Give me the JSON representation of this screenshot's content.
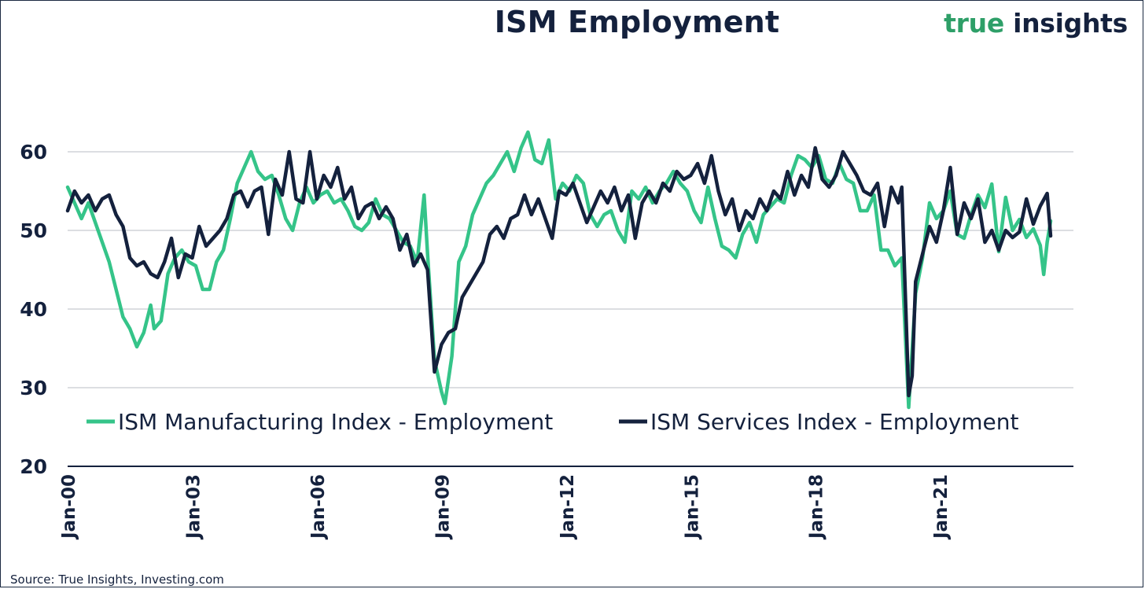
{
  "title": "ISM Employment",
  "brand": {
    "part1": "true",
    "part2": " insights"
  },
  "source": "Source: True Insights, Investing.com",
  "colors": {
    "manufacturing": "#35c489",
    "services": "#14213d",
    "grid": "#b8bcc6",
    "text": "#14213d"
  },
  "chart_data": {
    "type": "line",
    "title": "ISM Employment",
    "xlabel": "",
    "ylabel": "",
    "ylim": [
      20,
      62.5
    ],
    "yticks": [
      20,
      30,
      40,
      50,
      60
    ],
    "xlim": [
      "2000-01",
      "2023-09"
    ],
    "xticks": [
      "Jan-00",
      "Jan-03",
      "Jan-06",
      "Jan-09",
      "Jan-12",
      "Jan-15",
      "Jan-18",
      "Jan-21"
    ],
    "grid": true,
    "legend": "bottom",
    "series": [
      {
        "name": "ISM Manufacturing Index - Employment",
        "color": "#35c489",
        "points": [
          [
            "2000-01",
            55.5
          ],
          [
            "2000-03",
            53.5
          ],
          [
            "2000-05",
            51.5
          ],
          [
            "2000-07",
            53.5
          ],
          [
            "2000-09",
            51.0
          ],
          [
            "2000-11",
            48.5
          ],
          [
            "2001-01",
            46.0
          ],
          [
            "2001-03",
            42.5
          ],
          [
            "2001-05",
            39.0
          ],
          [
            "2001-07",
            37.5
          ],
          [
            "2001-09",
            35.2
          ],
          [
            "2001-11",
            37.0
          ],
          [
            "2002-01",
            40.5
          ],
          [
            "2002-02",
            37.5
          ],
          [
            "2002-04",
            38.5
          ],
          [
            "2002-06",
            44.5
          ],
          [
            "2002-08",
            46.5
          ],
          [
            "2002-10",
            47.5
          ],
          [
            "2002-12",
            46.0
          ],
          [
            "2003-02",
            45.5
          ],
          [
            "2003-04",
            42.5
          ],
          [
            "2003-06",
            42.5
          ],
          [
            "2003-08",
            46.0
          ],
          [
            "2003-10",
            47.5
          ],
          [
            "2003-12",
            51.5
          ],
          [
            "2004-02",
            56.0
          ],
          [
            "2004-04",
            58.0
          ],
          [
            "2004-06",
            60.0
          ],
          [
            "2004-08",
            57.5
          ],
          [
            "2004-10",
            56.5
          ],
          [
            "2004-12",
            57.0
          ],
          [
            "2005-02",
            54.5
          ],
          [
            "2005-04",
            51.5
          ],
          [
            "2005-06",
            50.0
          ],
          [
            "2005-08",
            53.5
          ],
          [
            "2005-10",
            55.5
          ],
          [
            "2005-12",
            53.5
          ],
          [
            "2006-02",
            54.5
          ],
          [
            "2006-04",
            55.0
          ],
          [
            "2006-06",
            53.5
          ],
          [
            "2006-08",
            54.0
          ],
          [
            "2006-10",
            52.5
          ],
          [
            "2006-12",
            50.5
          ],
          [
            "2007-02",
            50.0
          ],
          [
            "2007-04",
            51.0
          ],
          [
            "2007-06",
            54.0
          ],
          [
            "2007-08",
            52.0
          ],
          [
            "2007-10",
            51.5
          ],
          [
            "2007-12",
            50.0
          ],
          [
            "2008-02",
            48.5
          ],
          [
            "2008-04",
            48.0
          ],
          [
            "2008-06",
            46.0
          ],
          [
            "2008-08",
            54.5
          ],
          [
            "2008-09",
            47.0
          ],
          [
            "2008-11",
            33.5
          ],
          [
            "2009-01",
            29.5
          ],
          [
            "2009-02",
            28.0
          ],
          [
            "2009-04",
            34.0
          ],
          [
            "2009-06",
            46.0
          ],
          [
            "2009-08",
            48.0
          ],
          [
            "2009-10",
            52.0
          ],
          [
            "2009-12",
            54.0
          ],
          [
            "2010-02",
            56.0
          ],
          [
            "2010-04",
            57.0
          ],
          [
            "2010-06",
            58.5
          ],
          [
            "2010-08",
            60.0
          ],
          [
            "2010-10",
            57.5
          ],
          [
            "2010-12",
            60.5
          ],
          [
            "2011-02",
            62.5
          ],
          [
            "2011-04",
            59.0
          ],
          [
            "2011-06",
            58.5
          ],
          [
            "2011-08",
            61.5
          ],
          [
            "2011-10",
            54.0
          ],
          [
            "2011-12",
            56.0
          ],
          [
            "2012-02",
            55.0
          ],
          [
            "2012-04",
            57.0
          ],
          [
            "2012-06",
            56.0
          ],
          [
            "2012-08",
            52.0
          ],
          [
            "2012-10",
            50.5
          ],
          [
            "2012-12",
            52.0
          ],
          [
            "2013-02",
            52.5
          ],
          [
            "2013-04",
            50.0
          ],
          [
            "2013-06",
            48.5
          ],
          [
            "2013-08",
            55.0
          ],
          [
            "2013-10",
            54.0
          ],
          [
            "2013-12",
            55.5
          ],
          [
            "2014-02",
            53.5
          ],
          [
            "2014-04",
            55.0
          ],
          [
            "2014-06",
            56.0
          ],
          [
            "2014-08",
            57.5
          ],
          [
            "2014-10",
            56.0
          ],
          [
            "2014-12",
            55.0
          ],
          [
            "2015-02",
            52.5
          ],
          [
            "2015-04",
            51.0
          ],
          [
            "2015-06",
            55.5
          ],
          [
            "2015-08",
            51.5
          ],
          [
            "2015-10",
            48.0
          ],
          [
            "2015-12",
            47.5
          ],
          [
            "2016-02",
            46.5
          ],
          [
            "2016-04",
            49.5
          ],
          [
            "2016-06",
            51.0
          ],
          [
            "2016-08",
            48.5
          ],
          [
            "2016-10",
            52.0
          ],
          [
            "2016-12",
            53.0
          ],
          [
            "2017-02",
            54.0
          ],
          [
            "2017-04",
            53.5
          ],
          [
            "2017-06",
            57.0
          ],
          [
            "2017-08",
            59.5
          ],
          [
            "2017-10",
            59.0
          ],
          [
            "2017-12",
            58.0
          ],
          [
            "2018-02",
            59.5
          ],
          [
            "2018-04",
            56.5
          ],
          [
            "2018-06",
            56.0
          ],
          [
            "2018-08",
            58.5
          ],
          [
            "2018-10",
            56.5
          ],
          [
            "2018-12",
            56.0
          ],
          [
            "2019-02",
            52.5
          ],
          [
            "2019-04",
            52.5
          ],
          [
            "2019-06",
            54.5
          ],
          [
            "2019-08",
            47.5
          ],
          [
            "2019-10",
            47.5
          ],
          [
            "2019-12",
            45.5
          ],
          [
            "2020-02",
            46.5
          ],
          [
            "2020-04",
            27.5
          ],
          [
            "2020-06",
            42.0
          ],
          [
            "2020-08",
            46.5
          ],
          [
            "2020-10",
            53.5
          ],
          [
            "2020-12",
            51.5
          ],
          [
            "2021-02",
            52.5
          ],
          [
            "2021-04",
            55.0
          ],
          [
            "2021-06",
            49.5
          ],
          [
            "2021-08",
            49.0
          ],
          [
            "2021-10",
            52.0
          ],
          [
            "2021-12",
            54.5
          ],
          [
            "2022-02",
            52.9
          ],
          [
            "2022-04",
            55.9
          ],
          [
            "2022-06",
            47.3
          ],
          [
            "2022-08",
            54.2
          ],
          [
            "2022-10",
            50.0
          ],
          [
            "2022-12",
            51.4
          ],
          [
            "2023-02",
            49.1
          ],
          [
            "2023-04",
            50.2
          ],
          [
            "2023-06",
            48.1
          ],
          [
            "2023-07",
            44.4
          ],
          [
            "2023-08",
            48.5
          ],
          [
            "2023-09",
            51.2
          ]
        ]
      },
      {
        "name": "ISM Services Index - Employment",
        "color": "#14213d",
        "points": [
          [
            "2000-01",
            52.5
          ],
          [
            "2000-03",
            55.0
          ],
          [
            "2000-05",
            53.5
          ],
          [
            "2000-07",
            54.5
          ],
          [
            "2000-09",
            52.5
          ],
          [
            "2000-11",
            54.0
          ],
          [
            "2001-01",
            54.5
          ],
          [
            "2001-03",
            52.0
          ],
          [
            "2001-05",
            50.5
          ],
          [
            "2001-07",
            46.5
          ],
          [
            "2001-09",
            45.5
          ],
          [
            "2001-11",
            46.0
          ],
          [
            "2002-01",
            44.5
          ],
          [
            "2002-03",
            44.0
          ],
          [
            "2002-05",
            46.0
          ],
          [
            "2002-07",
            49.0
          ],
          [
            "2002-09",
            44.0
          ],
          [
            "2002-11",
            47.0
          ],
          [
            "2003-01",
            46.5
          ],
          [
            "2003-03",
            50.5
          ],
          [
            "2003-05",
            48.0
          ],
          [
            "2003-07",
            49.0
          ],
          [
            "2003-09",
            50.0
          ],
          [
            "2003-11",
            51.5
          ],
          [
            "2004-01",
            54.5
          ],
          [
            "2004-03",
            55.0
          ],
          [
            "2004-05",
            53.0
          ],
          [
            "2004-07",
            55.0
          ],
          [
            "2004-09",
            55.5
          ],
          [
            "2004-11",
            49.5
          ],
          [
            "2005-01",
            56.5
          ],
          [
            "2005-03",
            54.5
          ],
          [
            "2005-05",
            60.0
          ],
          [
            "2005-07",
            54.0
          ],
          [
            "2005-09",
            53.5
          ],
          [
            "2005-11",
            60.0
          ],
          [
            "2006-01",
            54.0
          ],
          [
            "2006-03",
            57.0
          ],
          [
            "2006-05",
            55.5
          ],
          [
            "2006-07",
            58.0
          ],
          [
            "2006-09",
            54.0
          ],
          [
            "2006-11",
            55.5
          ],
          [
            "2007-01",
            51.5
          ],
          [
            "2007-03",
            53.0
          ],
          [
            "2007-05",
            53.5
          ],
          [
            "2007-07",
            51.5
          ],
          [
            "2007-09",
            53.0
          ],
          [
            "2007-11",
            51.5
          ],
          [
            "2008-01",
            47.5
          ],
          [
            "2008-03",
            49.5
          ],
          [
            "2008-05",
            45.5
          ],
          [
            "2008-07",
            47.0
          ],
          [
            "2008-09",
            45.0
          ],
          [
            "2008-11",
            32.0
          ],
          [
            "2009-01",
            35.5
          ],
          [
            "2009-03",
            37.0
          ],
          [
            "2009-05",
            37.5
          ],
          [
            "2009-07",
            41.5
          ],
          [
            "2009-09",
            43.0
          ],
          [
            "2009-11",
            44.5
          ],
          [
            "2010-01",
            46.0
          ],
          [
            "2010-03",
            49.5
          ],
          [
            "2010-05",
            50.5
          ],
          [
            "2010-07",
            49.0
          ],
          [
            "2010-09",
            51.5
          ],
          [
            "2010-11",
            52.0
          ],
          [
            "2011-01",
            54.5
          ],
          [
            "2011-03",
            52.0
          ],
          [
            "2011-05",
            54.0
          ],
          [
            "2011-07",
            51.5
          ],
          [
            "2011-09",
            49.0
          ],
          [
            "2011-11",
            55.0
          ],
          [
            "2012-01",
            54.5
          ],
          [
            "2012-03",
            56.0
          ],
          [
            "2012-05",
            53.5
          ],
          [
            "2012-07",
            51.0
          ],
          [
            "2012-09",
            53.0
          ],
          [
            "2012-11",
            55.0
          ],
          [
            "2013-01",
            53.5
          ],
          [
            "2013-03",
            55.5
          ],
          [
            "2013-05",
            52.5
          ],
          [
            "2013-07",
            54.5
          ],
          [
            "2013-09",
            49.0
          ],
          [
            "2013-11",
            53.5
          ],
          [
            "2014-01",
            55.0
          ],
          [
            "2014-03",
            53.5
          ],
          [
            "2014-05",
            56.0
          ],
          [
            "2014-07",
            55.0
          ],
          [
            "2014-09",
            57.5
          ],
          [
            "2014-11",
            56.5
          ],
          [
            "2015-01",
            57.0
          ],
          [
            "2015-03",
            58.5
          ],
          [
            "2015-05",
            56.0
          ],
          [
            "2015-07",
            59.5
          ],
          [
            "2015-09",
            55.0
          ],
          [
            "2015-11",
            52.0
          ],
          [
            "2016-01",
            54.0
          ],
          [
            "2016-03",
            50.0
          ],
          [
            "2016-05",
            52.5
          ],
          [
            "2016-07",
            51.5
          ],
          [
            "2016-09",
            54.0
          ],
          [
            "2016-11",
            52.5
          ],
          [
            "2017-01",
            55.0
          ],
          [
            "2017-03",
            54.0
          ],
          [
            "2017-05",
            57.5
          ],
          [
            "2017-07",
            54.5
          ],
          [
            "2017-09",
            57.0
          ],
          [
            "2017-11",
            55.5
          ],
          [
            "2018-01",
            60.5
          ],
          [
            "2018-03",
            56.5
          ],
          [
            "2018-05",
            55.5
          ],
          [
            "2018-07",
            57.0
          ],
          [
            "2018-09",
            60.0
          ],
          [
            "2018-11",
            58.5
          ],
          [
            "2019-01",
            57.0
          ],
          [
            "2019-03",
            55.0
          ],
          [
            "2019-05",
            54.5
          ],
          [
            "2019-07",
            56.0
          ],
          [
            "2019-09",
            50.5
          ],
          [
            "2019-11",
            55.5
          ],
          [
            "2020-01",
            53.5
          ],
          [
            "2020-02",
            55.5
          ],
          [
            "2020-04",
            29.0
          ],
          [
            "2020-05",
            31.5
          ],
          [
            "2020-06",
            43.5
          ],
          [
            "2020-08",
            47.0
          ],
          [
            "2020-10",
            50.5
          ],
          [
            "2020-12",
            48.5
          ],
          [
            "2021-02",
            52.5
          ],
          [
            "2021-04",
            58.0
          ],
          [
            "2021-06",
            49.5
          ],
          [
            "2021-08",
            53.5
          ],
          [
            "2021-10",
            51.5
          ],
          [
            "2021-12",
            54.0
          ],
          [
            "2022-02",
            48.5
          ],
          [
            "2022-04",
            50.0
          ],
          [
            "2022-06",
            47.5
          ],
          [
            "2022-08",
            50.0
          ],
          [
            "2022-10",
            49.1
          ],
          [
            "2022-12",
            49.8
          ],
          [
            "2023-02",
            54.0
          ],
          [
            "2023-04",
            50.8
          ],
          [
            "2023-06",
            53.1
          ],
          [
            "2023-08",
            54.7
          ],
          [
            "2023-09",
            49.3
          ]
        ]
      }
    ]
  }
}
